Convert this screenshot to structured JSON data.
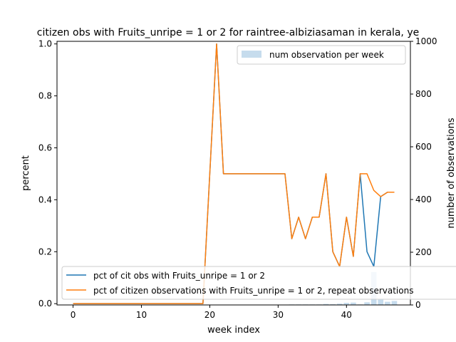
{
  "chart_data": {
    "type": "line",
    "title": "citizen obs with Fruits_unripe = 1 or 2 for raintree-albiziasaman in kerala, ye",
    "xlabel": "week index",
    "ylabel": "percent",
    "y2label": "number of observations",
    "xlim": [
      -2.35,
      49.35
    ],
    "ylim": [
      -0.005,
      1.01
    ],
    "y2lim": [
      0,
      1000
    ],
    "xticks": [
      "0",
      "10",
      "20",
      "30",
      "40"
    ],
    "yticks": [
      "0.0",
      "0.2",
      "0.4",
      "0.6",
      "0.8",
      "1.0"
    ],
    "y2ticks": [
      "0",
      "200",
      "400",
      "600",
      "800",
      "1000"
    ],
    "series": [
      {
        "name": "pct of cit obs with Fruits_unripe = 1 or 2",
        "color": "#1f77b4",
        "x": [
          0,
          1,
          2,
          3,
          4,
          5,
          6,
          7,
          8,
          9,
          10,
          11,
          12,
          13,
          14,
          15,
          16,
          17,
          18,
          19,
          20,
          21,
          22,
          23,
          24,
          25,
          26,
          27,
          28,
          29,
          30,
          31,
          32,
          33,
          34,
          35,
          36,
          37,
          38,
          39,
          40,
          41,
          42,
          43,
          44,
          45,
          46,
          47
        ],
        "values": [
          0,
          0,
          0,
          0,
          0,
          0,
          0,
          0,
          0,
          0,
          0,
          0,
          0,
          0,
          0,
          0,
          0,
          0,
          0,
          0,
          0.5,
          1.0,
          0.5,
          0.5,
          0.5,
          0.5,
          0.5,
          0.5,
          0.5,
          0.5,
          0.5,
          0.5,
          0.25,
          0.333,
          0.25,
          0.333,
          0.333,
          0.5,
          0.2,
          0.143,
          0.333,
          0.182,
          0.5,
          0.2,
          0.143,
          0.412,
          0.429,
          0.429
        ]
      },
      {
        "name": "pct of citizen observations with Fruits_unripe = 1 or 2, repeat observations",
        "color": "#ff7f0e",
        "x": [
          0,
          1,
          2,
          3,
          4,
          5,
          6,
          7,
          8,
          9,
          10,
          11,
          12,
          13,
          14,
          15,
          16,
          17,
          18,
          19,
          20,
          21,
          22,
          23,
          24,
          25,
          26,
          27,
          28,
          29,
          30,
          31,
          32,
          33,
          34,
          35,
          36,
          37,
          38,
          39,
          40,
          41,
          42,
          43,
          44,
          45,
          46,
          47
        ],
        "values": [
          0,
          0,
          0,
          0,
          0,
          0,
          0,
          0,
          0,
          0,
          0,
          0,
          0,
          0,
          0,
          0,
          0,
          0,
          0,
          0,
          0.5,
          1.0,
          0.5,
          0.5,
          0.5,
          0.5,
          0.5,
          0.5,
          0.5,
          0.5,
          0.5,
          0.5,
          0.25,
          0.333,
          0.25,
          0.333,
          0.333,
          0.5,
          0.2,
          0.143,
          0.333,
          0.182,
          0.5,
          0.5,
          0.436,
          0.412,
          0.429,
          0.429
        ]
      },
      {
        "name": "num observation per week",
        "color": "#aecde6",
        "type": "bar",
        "axis": "right",
        "x": [
          30,
          31,
          32,
          33,
          34,
          35,
          36,
          37,
          38,
          39,
          40,
          41,
          42,
          43,
          44,
          45,
          46,
          47
        ],
        "values": [
          1,
          1,
          2,
          2,
          2,
          2,
          2,
          4,
          3,
          5,
          8,
          9,
          2,
          10,
          125,
          20,
          12,
          15
        ]
      }
    ],
    "legend": {
      "upper_right": [
        "num observation per week"
      ],
      "lower_left": [
        "pct of cit obs with Fruits_unripe = 1 or 2",
        "pct of citizen observations with Fruits_unripe = 1 or 2, repeat observations"
      ]
    },
    "grid": false
  }
}
